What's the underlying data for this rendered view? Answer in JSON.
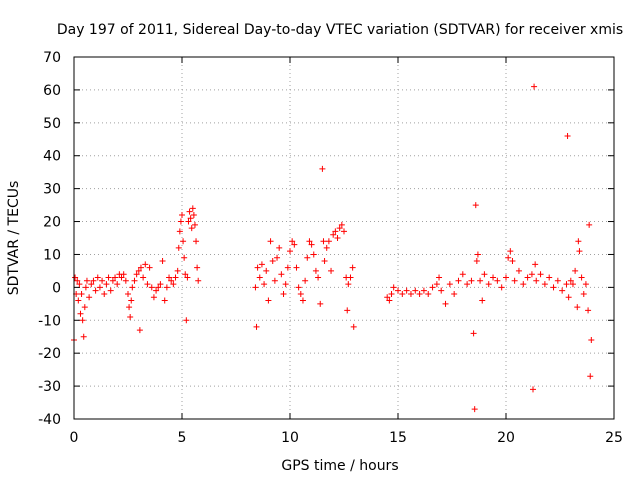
{
  "chart_data": {
    "type": "scatter",
    "title": "Day 197 of 2011, Sidereal Day-to-day VTEC variation (SDTVAR) for receiver xmis",
    "xlabel": "GPS time / hours",
    "ylabel": "SDTVAR / TECUs",
    "xlim": [
      0,
      25
    ],
    "ylim": [
      -40,
      70
    ],
    "xticks": [
      0,
      5,
      10,
      15,
      20,
      25
    ],
    "xtick_labels": [
      "0",
      "5",
      "10",
      "15",
      "20",
      "25"
    ],
    "yticks": [
      -40,
      -30,
      -20,
      -10,
      0,
      10,
      20,
      30,
      40,
      50,
      60,
      70
    ],
    "ytick_labels": [
      "-40",
      "-30",
      "-20",
      "-10",
      "0",
      "10",
      "20",
      "30",
      "40",
      "50",
      "60",
      "70"
    ],
    "grid": true,
    "marker": "+",
    "color": "#ff0000",
    "series": [
      {
        "name": "SDTVAR",
        "points": [
          [
            0.0,
            -16
          ],
          [
            0.05,
            3
          ],
          [
            0.1,
            -2
          ],
          [
            0.15,
            2
          ],
          [
            0.2,
            -4
          ],
          [
            0.25,
            1
          ],
          [
            0.3,
            -8
          ],
          [
            0.35,
            -2
          ],
          [
            0.4,
            -10
          ],
          [
            0.45,
            -15
          ],
          [
            0.5,
            -6
          ],
          [
            0.55,
            0
          ],
          [
            0.6,
            2
          ],
          [
            0.7,
            -3
          ],
          [
            0.8,
            1
          ],
          [
            0.9,
            2
          ],
          [
            1.0,
            -1
          ],
          [
            1.1,
            3
          ],
          [
            1.2,
            0
          ],
          [
            1.3,
            2
          ],
          [
            1.4,
            -2
          ],
          [
            1.5,
            1
          ],
          [
            1.6,
            3
          ],
          [
            1.7,
            -1
          ],
          [
            1.8,
            2
          ],
          [
            1.9,
            3
          ],
          [
            2.0,
            1
          ],
          [
            2.1,
            4
          ],
          [
            2.2,
            3
          ],
          [
            2.3,
            4
          ],
          [
            2.4,
            2
          ],
          [
            2.5,
            -2
          ],
          [
            2.55,
            -6
          ],
          [
            2.6,
            -9
          ],
          [
            2.65,
            -4
          ],
          [
            2.7,
            0
          ],
          [
            2.8,
            2
          ],
          [
            2.9,
            4
          ],
          [
            3.0,
            5
          ],
          [
            3.05,
            -13
          ],
          [
            3.1,
            6
          ],
          [
            3.2,
            3
          ],
          [
            3.3,
            7
          ],
          [
            3.4,
            1
          ],
          [
            3.5,
            6
          ],
          [
            3.6,
            0
          ],
          [
            3.7,
            -3
          ],
          [
            3.8,
            -1
          ],
          [
            3.9,
            0
          ],
          [
            4.0,
            1
          ],
          [
            4.1,
            8
          ],
          [
            4.2,
            -4
          ],
          [
            4.3,
            0
          ],
          [
            4.4,
            3
          ],
          [
            4.5,
            2
          ],
          [
            4.6,
            1
          ],
          [
            4.7,
            3
          ],
          [
            4.8,
            5
          ],
          [
            4.85,
            12
          ],
          [
            4.9,
            17
          ],
          [
            4.95,
            20
          ],
          [
            5.0,
            22
          ],
          [
            5.05,
            14
          ],
          [
            5.1,
            9
          ],
          [
            5.15,
            4
          ],
          [
            5.2,
            -10
          ],
          [
            5.25,
            3
          ],
          [
            5.3,
            20
          ],
          [
            5.35,
            23
          ],
          [
            5.4,
            21
          ],
          [
            5.45,
            18
          ],
          [
            5.5,
            24
          ],
          [
            5.55,
            22
          ],
          [
            5.6,
            19
          ],
          [
            5.65,
            14
          ],
          [
            5.7,
            6
          ],
          [
            5.75,
            2
          ],
          [
            8.4,
            0
          ],
          [
            8.45,
            -12
          ],
          [
            8.5,
            6
          ],
          [
            8.6,
            3
          ],
          [
            8.7,
            7
          ],
          [
            8.8,
            1
          ],
          [
            8.9,
            5
          ],
          [
            9.0,
            -4
          ],
          [
            9.1,
            14
          ],
          [
            9.2,
            8
          ],
          [
            9.3,
            2
          ],
          [
            9.4,
            9
          ],
          [
            9.5,
            12
          ],
          [
            9.6,
            4
          ],
          [
            9.7,
            -2
          ],
          [
            9.8,
            1
          ],
          [
            9.9,
            6
          ],
          [
            10.0,
            11
          ],
          [
            10.1,
            14
          ],
          [
            10.2,
            13
          ],
          [
            10.3,
            6
          ],
          [
            10.4,
            0
          ],
          [
            10.5,
            -2
          ],
          [
            10.6,
            -4
          ],
          [
            10.7,
            2
          ],
          [
            10.8,
            9
          ],
          [
            10.9,
            14
          ],
          [
            11.0,
            13
          ],
          [
            11.1,
            10
          ],
          [
            11.2,
            5
          ],
          [
            11.3,
            3
          ],
          [
            11.4,
            -5
          ],
          [
            11.5,
            36
          ],
          [
            11.55,
            14
          ],
          [
            11.6,
            8
          ],
          [
            11.7,
            12
          ],
          [
            11.8,
            14
          ],
          [
            11.9,
            5
          ],
          [
            12.0,
            16
          ],
          [
            12.1,
            17
          ],
          [
            12.2,
            15
          ],
          [
            12.3,
            18
          ],
          [
            12.4,
            19
          ],
          [
            12.5,
            17
          ],
          [
            12.6,
            3
          ],
          [
            12.65,
            -7
          ],
          [
            12.7,
            1
          ],
          [
            12.8,
            3
          ],
          [
            12.9,
            6
          ],
          [
            12.95,
            -12
          ],
          [
            14.5,
            -3
          ],
          [
            14.6,
            -4
          ],
          [
            14.7,
            -2
          ],
          [
            14.8,
            0
          ],
          [
            15.0,
            -1
          ],
          [
            15.2,
            -2
          ],
          [
            15.4,
            -1
          ],
          [
            15.6,
            -2
          ],
          [
            15.8,
            -1
          ],
          [
            16.0,
            -2
          ],
          [
            16.2,
            -1
          ],
          [
            16.4,
            -2
          ],
          [
            16.6,
            0
          ],
          [
            16.8,
            1
          ],
          [
            16.9,
            3
          ],
          [
            17.0,
            -1
          ],
          [
            17.2,
            -5
          ],
          [
            17.4,
            1
          ],
          [
            17.6,
            -2
          ],
          [
            17.8,
            2
          ],
          [
            18.0,
            4
          ],
          [
            18.2,
            1
          ],
          [
            18.4,
            2
          ],
          [
            18.5,
            -14
          ],
          [
            18.55,
            -37
          ],
          [
            18.6,
            25
          ],
          [
            18.65,
            8
          ],
          [
            18.7,
            10
          ],
          [
            18.8,
            2
          ],
          [
            18.9,
            -4
          ],
          [
            19.0,
            4
          ],
          [
            19.2,
            1
          ],
          [
            19.4,
            3
          ],
          [
            19.6,
            2
          ],
          [
            19.8,
            0
          ],
          [
            20.0,
            3
          ],
          [
            20.1,
            9
          ],
          [
            20.2,
            11
          ],
          [
            20.3,
            8
          ],
          [
            20.4,
            2
          ],
          [
            20.6,
            5
          ],
          [
            20.8,
            1
          ],
          [
            21.0,
            3
          ],
          [
            21.2,
            4
          ],
          [
            21.25,
            -31
          ],
          [
            21.3,
            61
          ],
          [
            21.35,
            7
          ],
          [
            21.4,
            2
          ],
          [
            21.6,
            4
          ],
          [
            21.8,
            1
          ],
          [
            22.0,
            3
          ],
          [
            22.2,
            0
          ],
          [
            22.4,
            2
          ],
          [
            22.6,
            -1
          ],
          [
            22.8,
            1
          ],
          [
            22.85,
            46
          ],
          [
            22.9,
            -3
          ],
          [
            23.0,
            2
          ],
          [
            23.1,
            1
          ],
          [
            23.2,
            5
          ],
          [
            23.3,
            -6
          ],
          [
            23.35,
            14
          ],
          [
            23.4,
            11
          ],
          [
            23.5,
            3
          ],
          [
            23.6,
            -2
          ],
          [
            23.7,
            1
          ],
          [
            23.8,
            -7
          ],
          [
            23.85,
            19
          ],
          [
            23.9,
            -27
          ],
          [
            23.95,
            -16
          ]
        ]
      }
    ]
  }
}
